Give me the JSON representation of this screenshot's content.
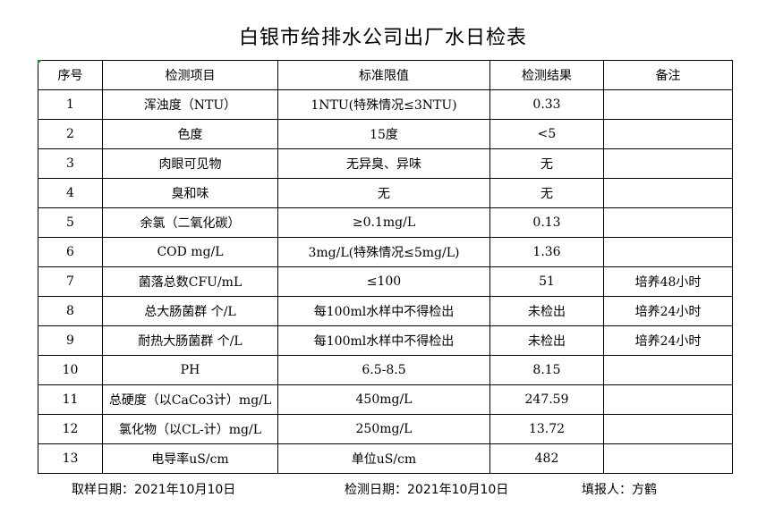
{
  "title": "白银市给排水公司出厂水日检表",
  "columns": [
    "序号",
    "检测项目",
    "标准限值",
    "检测结果",
    "备注"
  ],
  "rows": [
    [
      "1",
      "浑浊度（NTU）",
      "1NTU(特殊情况≤3NTU)",
      "0.33",
      ""
    ],
    [
      "2",
      "色度",
      "15度",
      "<5",
      ""
    ],
    [
      "3",
      "肉眼可见物",
      "无异臭、异味",
      "无",
      ""
    ],
    [
      "4",
      "臭和味",
      "无",
      "无",
      ""
    ],
    [
      "5",
      "余氯（二氧化碳）",
      "≥0.1mg/L",
      "0.13",
      ""
    ],
    [
      "6",
      "COD        mg/L",
      "3mg/L(特殊情况≤5mg/L)",
      "1.36",
      ""
    ],
    [
      "7",
      "菌落总数CFU/mL",
      "≤100",
      "51",
      "培养48小时"
    ],
    [
      "8",
      "总大肠菌群 个/L",
      "每100ml水样中不得检出",
      "未检出",
      "培养24小时"
    ],
    [
      "9",
      "耐热大肠菌群 个/L",
      "每100ml水样中不得检出",
      "未检出",
      "培养24小时"
    ],
    [
      "10",
      "PH",
      "6.5-8.5",
      "8.15",
      ""
    ],
    [
      "11",
      "总硬度（以CaCo3计）mg/L",
      "450mg/L",
      "247.59",
      ""
    ],
    [
      "12",
      "氯化物（以CL-计）mg/L",
      "250mg/L",
      "13.72",
      ""
    ],
    [
      "13",
      "电导率uS/cm",
      "单位uS/cm",
      "482",
      ""
    ]
  ],
  "footer": {
    "sampling_date": "取样日期：2021年10月10日",
    "test_date": "检测日期：2021年10月10日",
    "reporter": "填报人：方鹤"
  }
}
